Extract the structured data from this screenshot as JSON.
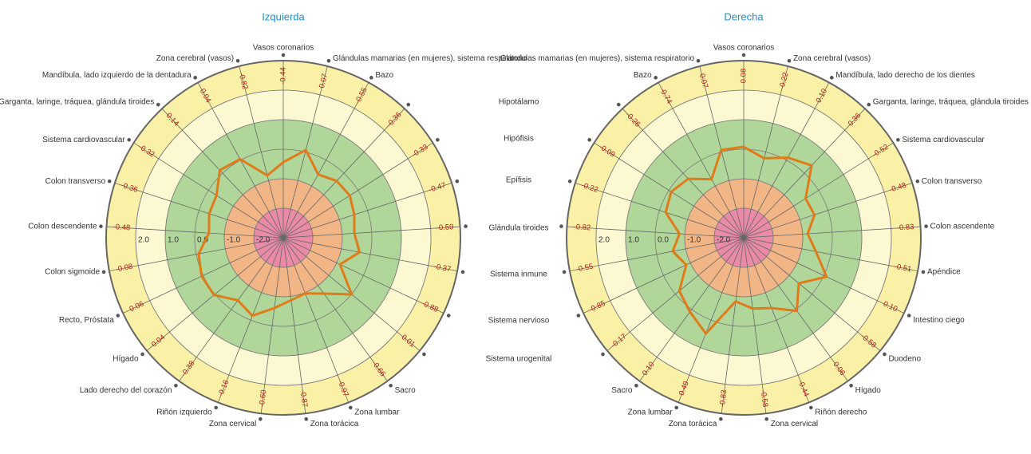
{
  "chart_data": [
    {
      "type": "radar",
      "title": "Izquierda",
      "categories": [
        "Vasos coronarios",
        "Glándulas mamarias (en mujeres), sistema respiratorio",
        "Bazo",
        "Hipotálamo",
        "Hipófisis",
        "Epífisis",
        "Glándula tiroides",
        "Sistema inmune",
        "Sistema nervioso",
        "Sistema urogenital",
        "Sacro",
        "Zona lumbar",
        "Zona torácica",
        "Zona cervical",
        "Riñón izquierdo",
        "Lado derecho del corazón",
        "Hígado",
        "Recto, Próstata",
        "Colon sigmoide",
        "Colon descendente",
        "Colon transverso",
        "Sistema cardiovascular",
        "Garganta, laringe, tráquea, glándula tiroides",
        "Mandíbula, lado izquierdo de la dentadura",
        "Zona cerebral (vasos)"
      ],
      "values": [
        -0.44,
        0.07,
        -0.55,
        -0.36,
        -0.33,
        -0.47,
        -0.59,
        -0.37,
        -0.88,
        0.01,
        -0.66,
        -0.97,
        -0.87,
        -0.6,
        -0.16,
        -0.38,
        0.04,
        0.06,
        -0.08,
        -0.48,
        -0.36,
        -0.32,
        0.14,
        0.04,
        -0.82
      ],
      "value_labels": [
        "-0.44",
        "0.07",
        "-0.55",
        "-0.36",
        "-0.33",
        "-0.47",
        "-0.59",
        "-0.37",
        "-0.88",
        "0.01",
        "-0.66",
        "-0.97",
        "-0.87",
        "-0.60",
        "-0.16",
        "-0.38",
        "0.04",
        "0.06",
        "-0.08",
        "-0.48",
        "-0.36",
        "-0.32",
        "0.14",
        "0.04",
        "-0.82"
      ],
      "color": "#e07b1a",
      "rlim": [
        -3,
        3
      ],
      "rticks": [
        {
          "value": 2,
          "label": "2.0"
        },
        {
          "value": 1,
          "label": "1.0"
        },
        {
          "value": 0,
          "label": "0.0"
        },
        {
          "value": -1,
          "label": "-1.0"
        },
        {
          "value": -2,
          "label": "-2.0"
        }
      ],
      "bands": [
        {
          "range": [
            2,
            3
          ],
          "color": "#fbf1a6"
        },
        {
          "range": [
            1,
            2
          ],
          "color": "#fbf8d2"
        },
        {
          "range": [
            -1,
            1
          ],
          "color": "#b1d69a"
        },
        {
          "range": [
            -2,
            -1
          ],
          "color": "#f1b586"
        },
        {
          "range": [
            -3,
            -2
          ],
          "color": "#e98aa6"
        }
      ]
    },
    {
      "type": "radar",
      "title": "Derecha",
      "categories": [
        "Vasos coronarios",
        "Zona cerebral (vasos)",
        "Mandíbula, lado derecho de los dientes",
        "Garganta, laringe, tráquea, glándula tiroides",
        "Sistema cardiovascular",
        "Colon transverso",
        "Colon ascendente",
        "Apéndice",
        "Intestino ciego",
        "Duodeno",
        "Hígado",
        "Riñón derecho",
        "Zona cervical",
        "Zona torácica",
        "Zona lumbar",
        "Sacro",
        null,
        null,
        null,
        null,
        null,
        null,
        null,
        "Bazo",
        "Glándulas mamarias (en mujeres), sistema respiratorio"
      ],
      "values": [
        0.08,
        -0.22,
        0.1,
        0.36,
        -0.52,
        -0.48,
        -0.83,
        -0.51,
        0.1,
        -0.58,
        0.06,
        -0.44,
        -0.58,
        -0.83,
        0.49,
        0.1,
        -0.17,
        -0.85,
        -0.55,
        -0.82,
        -0.22,
        -0.09,
        -0.26,
        -0.74,
        0.07
      ],
      "value_labels": [
        "0.08",
        "-0.22",
        "0.10",
        "0.36",
        "-0.52",
        "-0.48",
        "-0.83",
        "-0.51",
        "0.10",
        "-0.58",
        "0.06",
        "-0.44",
        "-0.58",
        "-0.83",
        "0.49",
        "0.10",
        "-0.17",
        "-0.85",
        "-0.55",
        "-0.82",
        "-0.22",
        "-0.09",
        "-0.26",
        "-0.74",
        "0.07"
      ],
      "color": "#e07b1a",
      "rlim": [
        -3,
        3
      ],
      "rticks": [
        {
          "value": 2,
          "label": "2.0"
        },
        {
          "value": 1,
          "label": "1.0"
        },
        {
          "value": 0,
          "label": "0.0"
        },
        {
          "value": -1,
          "label": "-1.0"
        },
        {
          "value": -2,
          "label": "-2.0"
        }
      ],
      "bands": [
        {
          "range": [
            2,
            3
          ],
          "color": "#fbf1a6"
        },
        {
          "range": [
            1,
            2
          ],
          "color": "#fbf8d2"
        },
        {
          "range": [
            -1,
            1
          ],
          "color": "#b1d69a"
        },
        {
          "range": [
            -2,
            -1
          ],
          "color": "#f1b586"
        },
        {
          "range": [
            -3,
            -2
          ],
          "color": "#e98aa6"
        }
      ]
    }
  ]
}
